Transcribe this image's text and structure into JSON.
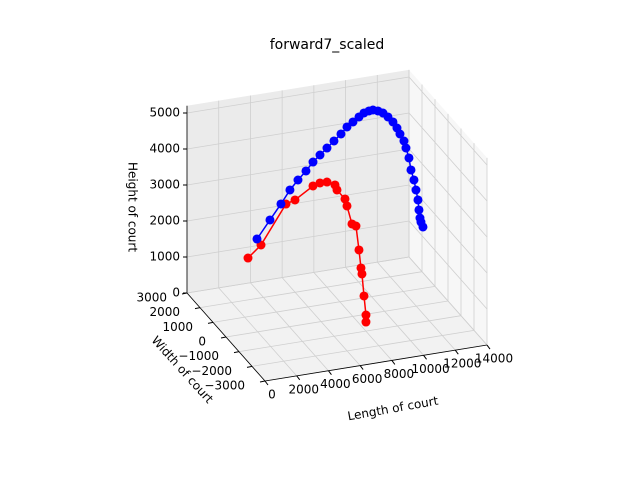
{
  "chart_data": {
    "type": "line3d",
    "title": "forward7_scaled",
    "xlabel": "Length of court",
    "ylabel": "Width of court",
    "zlabel": "Height of court",
    "xlim": [
      0,
      14000
    ],
    "ylim": [
      -3000,
      3000
    ],
    "zlim": [
      0,
      5200
    ],
    "xticks": [
      0,
      2000,
      4000,
      6000,
      8000,
      10000,
      12000,
      14000
    ],
    "yticks": [
      {
        "value": -3000,
        "label": "−3000"
      },
      {
        "value": -2000,
        "label": "−2000"
      },
      {
        "value": -1000,
        "label": "−1000"
      },
      0,
      1000,
      2000,
      3000
    ],
    "zticks": [
      0,
      1000,
      2000,
      3000,
      4000,
      5000
    ],
    "grid": true,
    "series": [
      {
        "color": "#ff0000",
        "x": [
          1387,
          2186,
          3741,
          4288,
          5402,
          5822,
          6242,
          6727,
          6832,
          7315,
          7420,
          7714,
          7945,
          8114,
          8219,
          8260,
          8367,
          8471,
          8449
        ],
        "y": [
          0,
          -26,
          -51,
          -77,
          -102,
          -128,
          -153,
          -179,
          -204,
          -230,
          -256,
          -281,
          -307,
          -332,
          -358,
          -383,
          -409,
          -435,
          -460
        ],
        "z": [
          2095,
          2410,
          3448,
          3531,
          3851,
          3915,
          3922,
          3816,
          3679,
          3405,
          3214,
          2703,
          2641,
          1973,
          1476,
          1317,
          709,
          183,
          0
        ]
      },
      {
        "color": "#0000ff",
        "x": [
          3594,
          4363,
          5006,
          5523,
          5980,
          6435,
          6827,
          7219,
          7610,
          8001,
          8393,
          8722,
          9051,
          9380,
          9645,
          9911,
          10113,
          10379,
          10644,
          10910,
          11175,
          11378,
          11518,
          11720,
          11796,
          11936,
          12013,
          12152,
          12228,
          12305,
          12318,
          12332,
          12345,
          12421
        ],
        "y": [
          2000,
          1939,
          1879,
          1818,
          1758,
          1697,
          1636,
          1576,
          1515,
          1455,
          1394,
          1333,
          1273,
          1212,
          1152,
          1091,
          1030,
          970,
          909,
          848,
          788,
          727,
          667,
          606,
          545,
          485,
          424,
          364,
          303,
          242,
          182,
          121,
          61,
          0
        ],
        "z": [
          1651,
          2149,
          2572,
          2949,
          3218,
          3461,
          3707,
          3898,
          4089,
          4281,
          4473,
          4668,
          4808,
          4948,
          5065,
          5127,
          5164,
          5142,
          5092,
          4987,
          4854,
          4697,
          4545,
          4361,
          4186,
          3923,
          3609,
          3346,
          3087,
          2829,
          2575,
          2376,
          2288,
          2169
        ]
      }
    ]
  }
}
